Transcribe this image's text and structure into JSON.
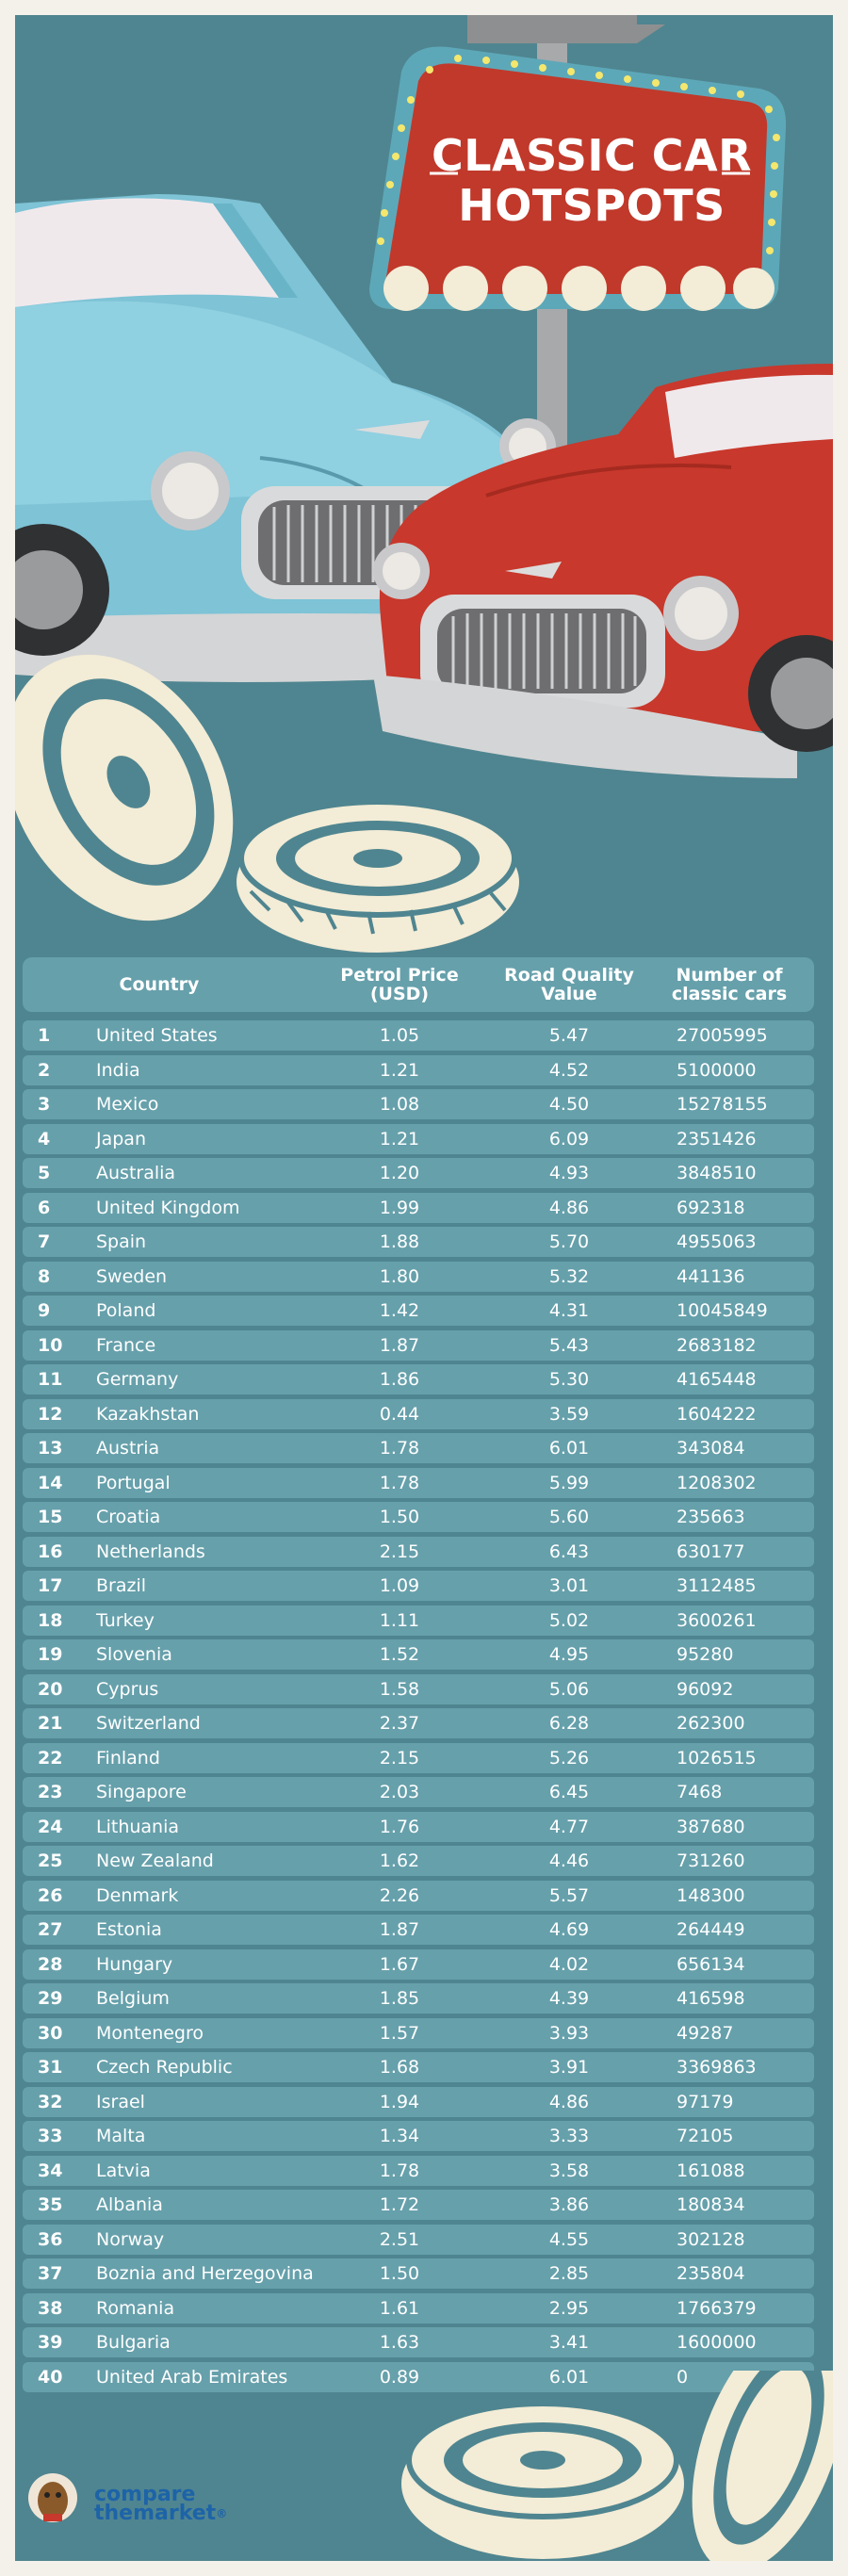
{
  "title_line1": "CLASSIC CAR",
  "title_line2": "HOTSPOTS",
  "columns": {
    "country": "Country",
    "price_1": "Petrol Price",
    "price_2": "(USD)",
    "road_1": "Road Quality",
    "road_2": "Value",
    "cars_1": "Number of",
    "cars_2": "classic cars"
  },
  "rows": [
    {
      "rank": "1",
      "country": "United States",
      "price": "1.05",
      "road": "5.47",
      "cars": "27005995"
    },
    {
      "rank": "2",
      "country": "India",
      "price": "1.21",
      "road": "4.52",
      "cars": "5100000"
    },
    {
      "rank": "3",
      "country": "Mexico",
      "price": "1.08",
      "road": "4.50",
      "cars": "15278155"
    },
    {
      "rank": "4",
      "country": "Japan",
      "price": "1.21",
      "road": "6.09",
      "cars": "2351426"
    },
    {
      "rank": "5",
      "country": "Australia",
      "price": "1.20",
      "road": "4.93",
      "cars": "3848510"
    },
    {
      "rank": "6",
      "country": "United Kingdom",
      "price": "1.99",
      "road": "4.86",
      "cars": "692318"
    },
    {
      "rank": "7",
      "country": "Spain",
      "price": "1.88",
      "road": "5.70",
      "cars": "4955063"
    },
    {
      "rank": "8",
      "country": "Sweden",
      "price": "1.80",
      "road": "5.32",
      "cars": "441136"
    },
    {
      "rank": "9",
      "country": "Poland",
      "price": "1.42",
      "road": "4.31",
      "cars": "10045849"
    },
    {
      "rank": "10",
      "country": "France",
      "price": "1.87",
      "road": "5.43",
      "cars": "2683182"
    },
    {
      "rank": "11",
      "country": "Germany",
      "price": "1.86",
      "road": "5.30",
      "cars": "4165448"
    },
    {
      "rank": "12",
      "country": "Kazakhstan",
      "price": "0.44",
      "road": "3.59",
      "cars": "1604222"
    },
    {
      "rank": "13",
      "country": "Austria",
      "price": "1.78",
      "road": "6.01",
      "cars": "343084"
    },
    {
      "rank": "14",
      "country": "Portugal",
      "price": "1.78",
      "road": "5.99",
      "cars": "1208302"
    },
    {
      "rank": "15",
      "country": "Croatia",
      "price": "1.50",
      "road": "5.60",
      "cars": "235663"
    },
    {
      "rank": "16",
      "country": "Netherlands",
      "price": "2.15",
      "road": "6.43",
      "cars": "630177"
    },
    {
      "rank": "17",
      "country": "Brazil",
      "price": "1.09",
      "road": "3.01",
      "cars": "3112485"
    },
    {
      "rank": "18",
      "country": "Turkey",
      "price": "1.11",
      "road": "5.02",
      "cars": "3600261"
    },
    {
      "rank": "19",
      "country": "Slovenia",
      "price": "1.52",
      "road": "4.95",
      "cars": "95280"
    },
    {
      "rank": "20",
      "country": "Cyprus",
      "price": "1.58",
      "road": "5.06",
      "cars": "96092"
    },
    {
      "rank": "21",
      "country": "Switzerland",
      "price": "2.37",
      "road": "6.28",
      "cars": "262300"
    },
    {
      "rank": "22",
      "country": "Finland",
      "price": "2.15",
      "road": "5.26",
      "cars": "1026515"
    },
    {
      "rank": "23",
      "country": "Singapore",
      "price": "2.03",
      "road": "6.45",
      "cars": "7468"
    },
    {
      "rank": "24",
      "country": "Lithuania",
      "price": "1.76",
      "road": "4.77",
      "cars": "387680"
    },
    {
      "rank": "25",
      "country": "New Zealand",
      "price": "1.62",
      "road": "4.46",
      "cars": "731260"
    },
    {
      "rank": "26",
      "country": "Denmark",
      "price": "2.26",
      "road": "5.57",
      "cars": "148300"
    },
    {
      "rank": "27",
      "country": "Estonia",
      "price": "1.87",
      "road": "4.69",
      "cars": "264449"
    },
    {
      "rank": "28",
      "country": "Hungary",
      "price": "1.67",
      "road": "4.02",
      "cars": "656134"
    },
    {
      "rank": "29",
      "country": "Belgium",
      "price": "1.85",
      "road": "4.39",
      "cars": "416598"
    },
    {
      "rank": "30",
      "country": "Montenegro",
      "price": "1.57",
      "road": "3.93",
      "cars": "49287"
    },
    {
      "rank": "31",
      "country": "Czech Republic",
      "price": "1.68",
      "road": "3.91",
      "cars": "3369863"
    },
    {
      "rank": "32",
      "country": "Israel",
      "price": "1.94",
      "road": "4.86",
      "cars": "97179"
    },
    {
      "rank": "33",
      "country": "Malta",
      "price": "1.34",
      "road": "3.33",
      "cars": "72105"
    },
    {
      "rank": "34",
      "country": "Latvia",
      "price": "1.78",
      "road": "3.58",
      "cars": "161088"
    },
    {
      "rank": "35",
      "country": "Albania",
      "price": "1.72",
      "road": "3.86",
      "cars": "180834"
    },
    {
      "rank": "36",
      "country": "Norway",
      "price": "2.51",
      "road": "4.55",
      "cars": "302128"
    },
    {
      "rank": "37",
      "country": "Boznia and Herzegovina",
      "price": "1.50",
      "road": "2.85",
      "cars": "235804"
    },
    {
      "rank": "38",
      "country": "Romania",
      "price": "1.61",
      "road": "2.95",
      "cars": "1766379"
    },
    {
      "rank": "39",
      "country": "Bulgaria",
      "price": "1.63",
      "road": "3.41",
      "cars": "1600000"
    },
    {
      "rank": "40",
      "country": "United Arab Emirates",
      "price": "0.89",
      "road": "6.01",
      "cars": "0"
    }
  ],
  "logo_line1": "compare",
  "logo_line2": "themarket",
  "logo_mark": "®",
  "colors": {
    "background": "#4f8590",
    "row": "#66a0ab",
    "blue_car": "#7ec3d6",
    "red_car": "#c8382c",
    "sign": "#c0392b",
    "logo": "#1d63a8"
  }
}
